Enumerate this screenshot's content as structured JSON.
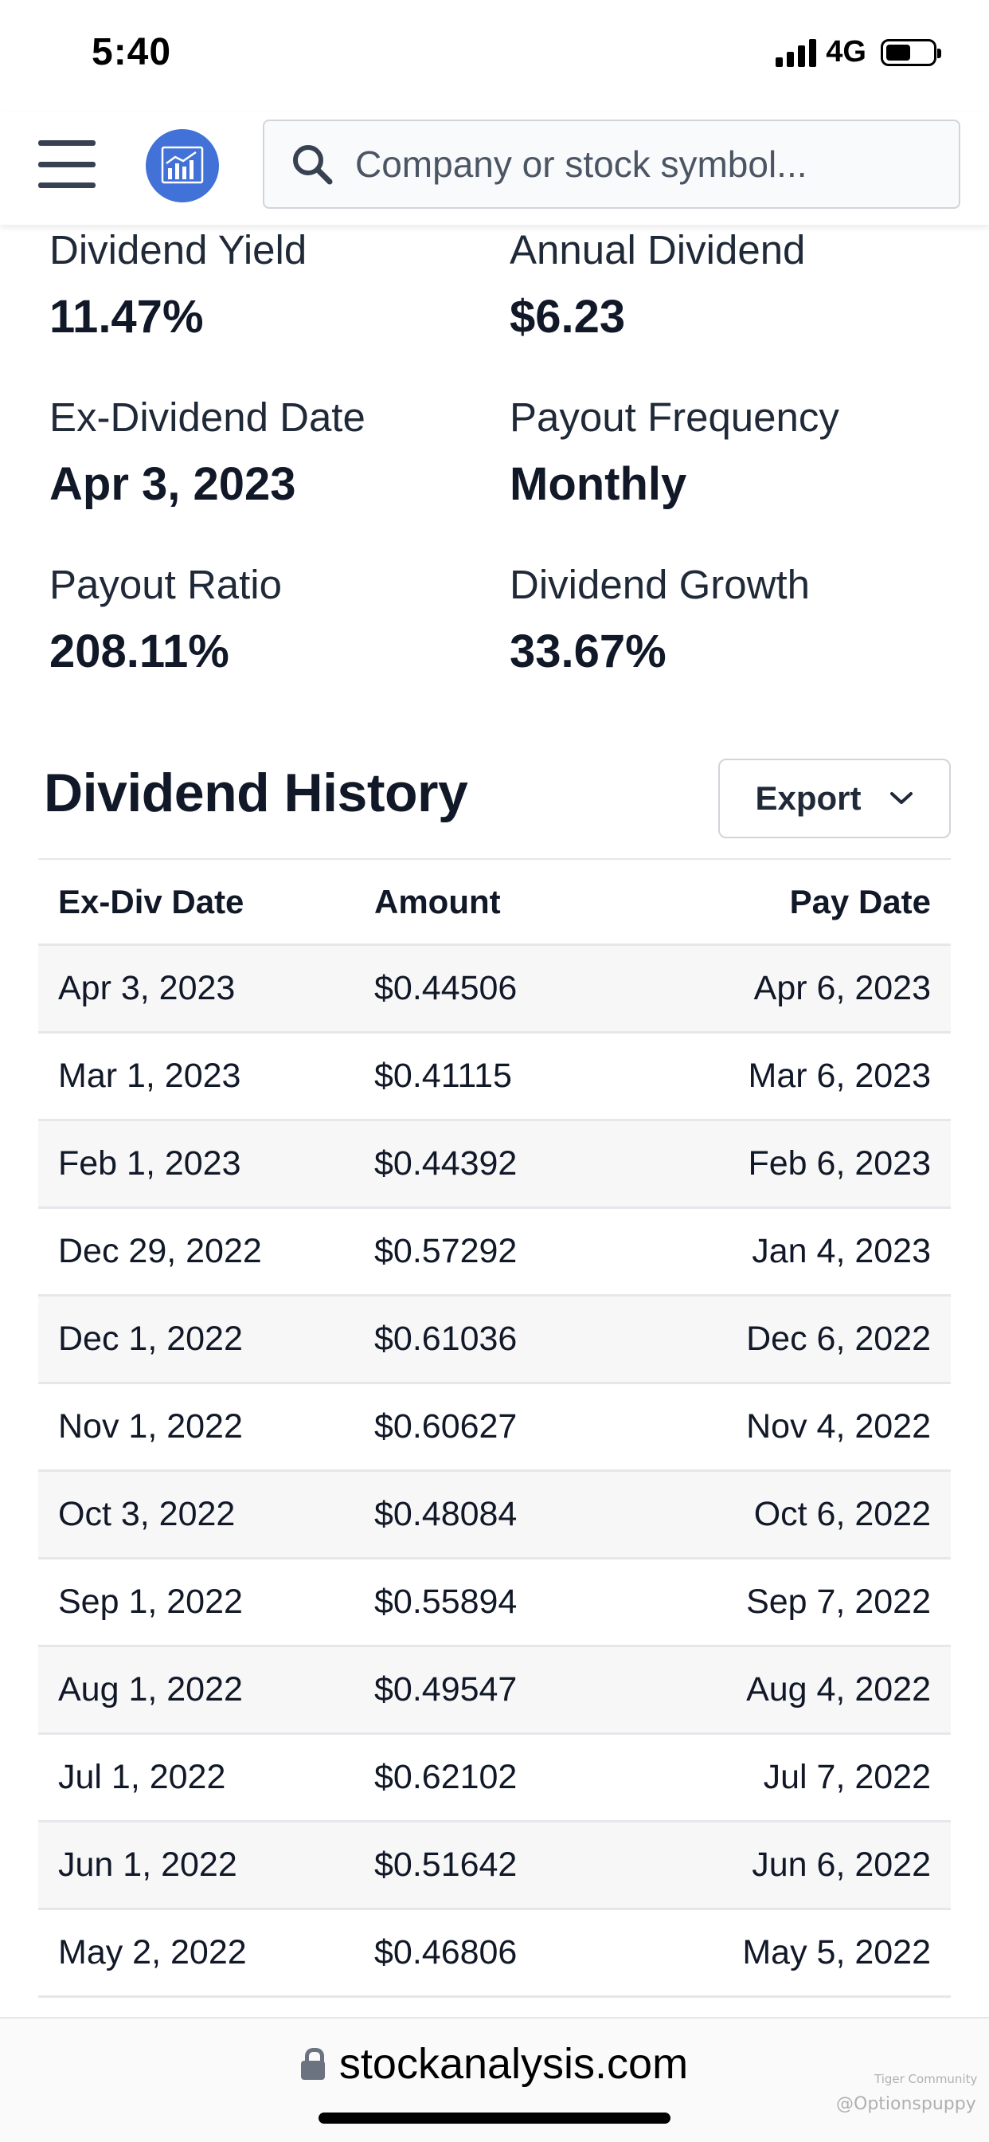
{
  "status_bar": {
    "time": "5:40",
    "network": "4G"
  },
  "header": {
    "search": {
      "placeholder": "Company or stock symbol..."
    },
    "icons": {
      "menu": "menu-icon",
      "logo": "chart-logo-icon",
      "search": "search-icon"
    },
    "logo_color": "#4272d7"
  },
  "stats": {
    "dividend_yield": {
      "label": "Dividend Yield",
      "value": "11.47%"
    },
    "annual_dividend": {
      "label": "Annual Dividend",
      "value": "$6.23"
    },
    "ex_dividend_date": {
      "label": "Ex-Dividend Date",
      "value": "Apr 3, 2023"
    },
    "payout_frequency": {
      "label": "Payout Frequency",
      "value": "Monthly"
    },
    "payout_ratio": {
      "label": "Payout Ratio",
      "value": "208.11%"
    },
    "dividend_growth": {
      "label": "Dividend Growth",
      "value": "33.67%"
    }
  },
  "history": {
    "title": "Dividend History",
    "export_label": "Export",
    "columns": [
      "Ex-Div Date",
      "Amount",
      "Pay Date"
    ],
    "rows": [
      {
        "ex_div": "Apr 3, 2023",
        "amount": "$0.44506",
        "pay": "Apr 6, 2023"
      },
      {
        "ex_div": "Mar 1, 2023",
        "amount": "$0.41115",
        "pay": "Mar 6, 2023"
      },
      {
        "ex_div": "Feb 1, 2023",
        "amount": "$0.44392",
        "pay": "Feb 6, 2023"
      },
      {
        "ex_div": "Dec 29, 2022",
        "amount": "$0.57292",
        "pay": "Jan 4, 2023"
      },
      {
        "ex_div": "Dec 1, 2022",
        "amount": "$0.61036",
        "pay": "Dec 6, 2022"
      },
      {
        "ex_div": "Nov 1, 2022",
        "amount": "$0.60627",
        "pay": "Nov 4, 2022"
      },
      {
        "ex_div": "Oct 3, 2022",
        "amount": "$0.48084",
        "pay": "Oct 6, 2022"
      },
      {
        "ex_div": "Sep 1, 2022",
        "amount": "$0.55894",
        "pay": "Sep 7, 2022"
      },
      {
        "ex_div": "Aug 1, 2022",
        "amount": "$0.49547",
        "pay": "Aug 4, 2022"
      },
      {
        "ex_div": "Jul 1, 2022",
        "amount": "$0.62102",
        "pay": "Jul 7, 2022"
      },
      {
        "ex_div": "Jun 1, 2022",
        "amount": "$0.51642",
        "pay": "Jun 6, 2022"
      },
      {
        "ex_div": "May 2, 2022",
        "amount": "$0.46806",
        "pay": "May 5, 2022"
      }
    ]
  },
  "browser": {
    "url": "stockanalysis.com"
  },
  "watermark": {
    "brand": "Tiger Community",
    "handle": "@Optionspuppy"
  }
}
